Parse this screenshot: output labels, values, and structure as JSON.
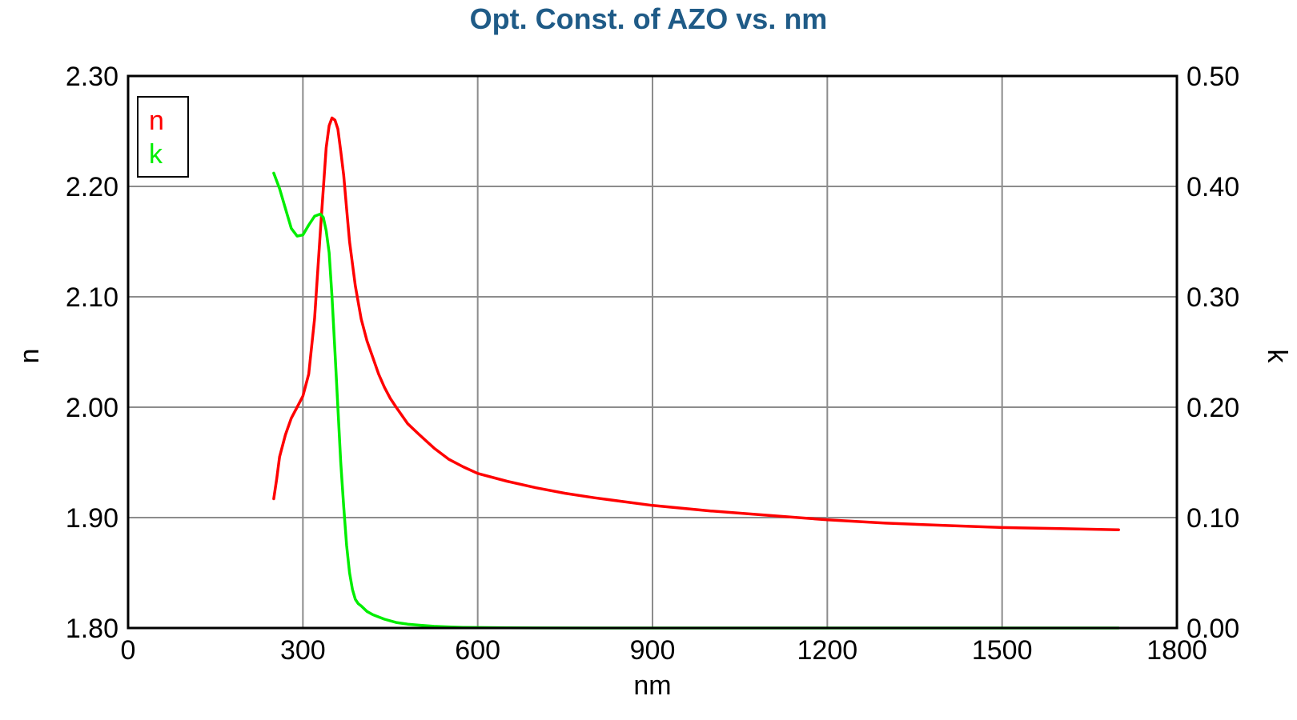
{
  "chart_data": {
    "type": "line",
    "title": "Opt. Const. of AZO vs. nm",
    "xlabel": "nm",
    "ylabel": "n",
    "y2label": "k",
    "xlim": [
      0,
      1800
    ],
    "ylim": [
      1.8,
      2.3
    ],
    "y2lim": [
      0.0,
      0.5
    ],
    "x_ticks": [
      "0",
      "300",
      "600",
      "900",
      "1200",
      "1500",
      "1800"
    ],
    "y_ticks": [
      "1.80",
      "1.90",
      "2.00",
      "2.10",
      "2.20",
      "2.30"
    ],
    "y2_ticks": [
      "0.00",
      "0.10",
      "0.20",
      "0.30",
      "0.40",
      "0.50"
    ],
    "x_tick_values": [
      0,
      300,
      600,
      900,
      1200,
      1500,
      1800
    ],
    "y_tick_values": [
      1.8,
      1.9,
      2.0,
      2.1,
      2.2,
      2.3
    ],
    "grid": true,
    "legend_position": "top-left",
    "series": [
      {
        "name": "n",
        "axis": "left",
        "color": "#ff0000",
        "x": [
          250,
          255,
          260,
          270,
          280,
          290,
          300,
          310,
          320,
          330,
          340,
          345,
          350,
          355,
          360,
          365,
          370,
          375,
          380,
          390,
          400,
          410,
          420,
          430,
          440,
          450,
          460,
          480,
          500,
          525,
          550,
          575,
          600,
          650,
          700,
          750,
          800,
          900,
          1000,
          1100,
          1200,
          1300,
          1400,
          1500,
          1600,
          1700
        ],
        "y": [
          1.917,
          1.935,
          1.955,
          1.975,
          1.99,
          2.0,
          2.01,
          2.03,
          2.08,
          2.16,
          2.235,
          2.255,
          2.262,
          2.26,
          2.252,
          2.232,
          2.21,
          2.18,
          2.15,
          2.11,
          2.08,
          2.06,
          2.045,
          2.03,
          2.018,
          2.008,
          2.0,
          1.985,
          1.975,
          1.963,
          1.953,
          1.946,
          1.94,
          1.933,
          1.927,
          1.922,
          1.918,
          1.911,
          1.906,
          1.902,
          1.898,
          1.895,
          1.893,
          1.891,
          1.89,
          1.889
        ]
      },
      {
        "name": "k",
        "axis": "right",
        "color": "#00ee00",
        "x": [
          250,
          260,
          270,
          280,
          290,
          300,
          310,
          320,
          330,
          335,
          340,
          345,
          350,
          355,
          360,
          365,
          370,
          375,
          380,
          385,
          390,
          395,
          400,
          410,
          420,
          440,
          460,
          480,
          500,
          525,
          550,
          575,
          600,
          650,
          700,
          800,
          900,
          1000,
          1200,
          1400,
          1700
        ],
        "y": [
          0.412,
          0.398,
          0.38,
          0.362,
          0.355,
          0.356,
          0.365,
          0.373,
          0.375,
          0.372,
          0.36,
          0.34,
          0.3,
          0.25,
          0.2,
          0.15,
          0.11,
          0.075,
          0.05,
          0.035,
          0.026,
          0.022,
          0.02,
          0.015,
          0.012,
          0.008,
          0.005,
          0.0035,
          0.0025,
          0.0015,
          0.001,
          0.0006,
          0.0004,
          0.0002,
          0.0001,
          0.0,
          0.0,
          0.0,
          0.0,
          0.0,
          0.0
        ]
      }
    ]
  }
}
